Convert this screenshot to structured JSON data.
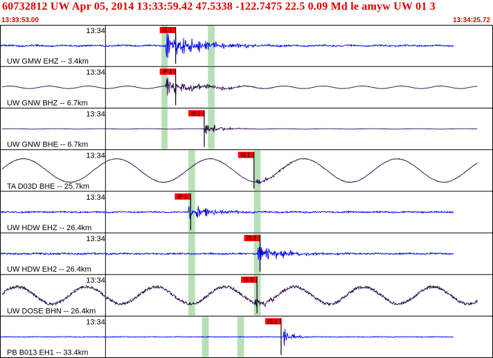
{
  "header": {
    "title": "60732812 UW Apr 05, 2014 13:33:59.42    47.5338 -122.7475 22.5 0.09 Md le amyw UW 01   3",
    "start_time": "13:33:53.00",
    "end_time": "13:34:25.72"
  },
  "colors": {
    "title": "#e00000",
    "trace_ehz": "#0000ff",
    "trace_broadband": "#2a0a4a",
    "pick_flag": "#ff0000",
    "window": "#b8e0b8",
    "frame": "#000000"
  },
  "chart_data": {
    "type": "line",
    "x_unit": "seconds",
    "xlim": [
      "13:33:53.00",
      "13:34:25.72"
    ],
    "tick_label": "13:34",
    "tick_time_s": 7.0,
    "traces": [
      {
        "label": "UW GMW EHZ -- 3.4km",
        "type": "eh",
        "pick": "iS 1",
        "pick_time_s": 10.6,
        "win": [
          10.72,
          11.12
        ],
        "win2": [
          13.8,
          14.25
        ],
        "onset_s": 11.0,
        "amp": 0.55,
        "noise": 0.12,
        "lp": 0.03,
        "burst": 3.2,
        "decay": 2.2
      },
      {
        "label": "UW GNW BHZ -- 6.7km",
        "type": "bb",
        "pick": "iP 1",
        "pick_time_s": 10.6,
        "win": [
          10.72,
          11.12
        ],
        "win2": [
          13.8,
          14.25
        ],
        "onset_s": 11.0,
        "amp": 0.5,
        "noise": 0.02,
        "lp": 0.12,
        "lpwave": 2.6,
        "burst": 2.2,
        "decay": 2.0
      },
      {
        "label": "UW GNW BHE -- 6.7km",
        "type": "bb",
        "pick": "iS 1",
        "pick_time_s": 12.5,
        "win": [
          10.72,
          11.12
        ],
        "win2": [
          13.8,
          14.25
        ],
        "onset_s": 13.6,
        "amp": 0.5,
        "noise": 0.01,
        "lp": 0.02,
        "lpwave": 3.0,
        "burst": 1.6,
        "decay": 0.9
      },
      {
        "label": "TA D03D BHE -- 25.7km",
        "type": "bb",
        "pick": "iS 1",
        "pick_time_s": 15.8,
        "win": [
          12.5,
          12.95
        ],
        "win2": [
          16.85,
          17.3
        ],
        "onset_s": 17.0,
        "amp": 0.75,
        "noise": 0.04,
        "lp": 0.75,
        "lpwave": 6.2,
        "burst": 0.45,
        "decay": 1.6
      },
      {
        "label": "UW HDW EHZ -- 26.4km",
        "type": "eh",
        "pick": "iP 1",
        "pick_time_s": 11.6,
        "win": [
          12.5,
          12.95
        ],
        "win2": [
          16.85,
          17.3
        ],
        "onset_s": 12.5,
        "amp": 0.5,
        "noise": 0.12,
        "lp": 0.02,
        "burst": 1.6,
        "decay": 1.8
      },
      {
        "label": "UW HDW EH2 -- 26.4km",
        "type": "eh",
        "pick": "iS 1",
        "pick_time_s": 16.2,
        "win": [
          12.5,
          12.95
        ],
        "win2": [
          16.85,
          17.3
        ],
        "onset_s": 17.1,
        "amp": 0.5,
        "noise": 0.14,
        "lp": 0.02,
        "burst": 2.2,
        "decay": 1.6
      },
      {
        "label": "UW DOSE BHN -- 26.4km",
        "type": "bb",
        "pick": "iS 1",
        "pick_time_s": 16.0,
        "win": [
          12.5,
          12.95
        ],
        "win2": [
          16.85,
          17.3
        ],
        "onset_s": 16.9,
        "amp": 0.75,
        "noise": 0.18,
        "lp": 0.55,
        "lpwave": 4.6,
        "burst": 0.9,
        "decay": 1.0
      },
      {
        "label": "PB B013 EH1 -- 33.4km",
        "type": "eh",
        "pick": "iS 1",
        "pick_time_s": 17.6,
        "win": [
          13.4,
          13.85
        ],
        "win2": [
          15.75,
          16.2
        ],
        "onset_s": 18.8,
        "amp": 0.45,
        "noise": 0.08,
        "lp": 0.01,
        "burst": 2.4,
        "decay": 0.6
      }
    ]
  }
}
